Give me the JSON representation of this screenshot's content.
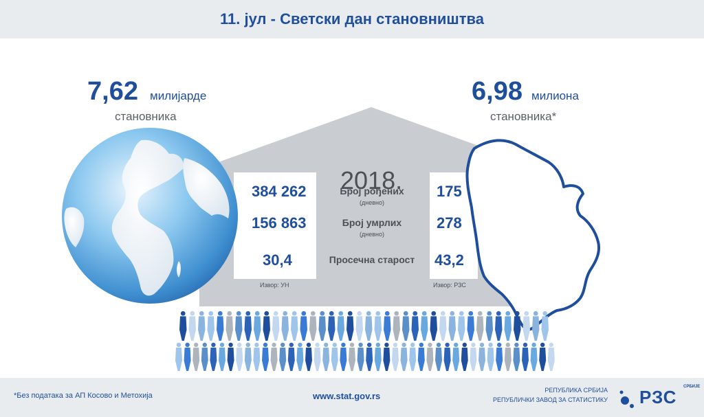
{
  "header": {
    "title": "11. јул - Светски дан становништва"
  },
  "world": {
    "number": "7,62",
    "unit": "милијарде",
    "sub": "становника"
  },
  "serbia": {
    "number": "6,98",
    "unit": "милиона",
    "sub": "становника*"
  },
  "year": "2018.",
  "stats": {
    "rows": [
      {
        "world": "384 262",
        "label": "Број рођених",
        "sublabel": "(дневно)",
        "serbia": "175"
      },
      {
        "world": "156 863",
        "label": "Број умрлих",
        "sublabel": "(дневно)",
        "serbia": "278"
      },
      {
        "world": "30,4",
        "label": "Просечна старост",
        "sublabel": "",
        "serbia": "43,2"
      }
    ],
    "source_world": "Извор: УН",
    "source_serbia": "Извор: РЗС"
  },
  "footer": {
    "note": "*Без података за АП Косово и Метохија",
    "url": "www.stat.gov.rs",
    "org_line1": "РЕПУБЛИКА СРБИЈА",
    "org_line2": "РЕПУБЛИЧКИ ЗАВОД ЗА СТАТИСТИКУ",
    "logo_text": "РЗС",
    "logo_small": "СРБИЈЕ"
  },
  "colors": {
    "brand_blue": "#1f4e9c",
    "panel_gray": "#c9ccd0",
    "header_bg": "#e9ecef"
  }
}
